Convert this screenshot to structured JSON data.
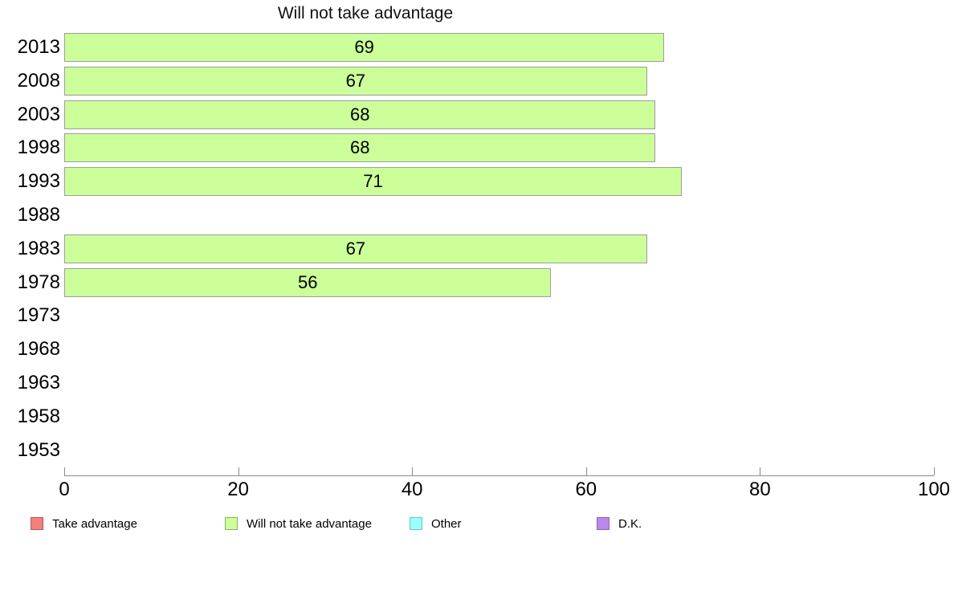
{
  "chart_data": {
    "type": "bar",
    "orientation": "horizontal",
    "title": "Will not take advantage",
    "categories": [
      "2013",
      "2008",
      "2003",
      "1998",
      "1993",
      "1988",
      "1983",
      "1978",
      "1973",
      "1968",
      "1963",
      "1958",
      "1953"
    ],
    "values": [
      69,
      67,
      68,
      68,
      71,
      null,
      67,
      56,
      null,
      null,
      null,
      null,
      null
    ],
    "xlabel": "",
    "ylabel": "",
    "xlim": [
      0,
      100
    ],
    "x_ticks": [
      0,
      20,
      40,
      60,
      80,
      100
    ],
    "grid": "off",
    "bar_color": "#ccff99",
    "bar_border_color": "#9d9d9d",
    "axis_color": "#8c8c8c",
    "legend_position": "bottom",
    "legend": [
      {
        "label": "Take advantage",
        "color": "#f57e7e",
        "border": "#ab5c5c"
      },
      {
        "label": "Will not take advantage",
        "color": "#ccff99",
        "border": "#8fae67"
      },
      {
        "label": "Other",
        "color": "#99ffff",
        "border": "#6cc3c3"
      },
      {
        "label": "D.K.",
        "color": "#bb88ee",
        "border": "#8a64ad"
      }
    ]
  }
}
